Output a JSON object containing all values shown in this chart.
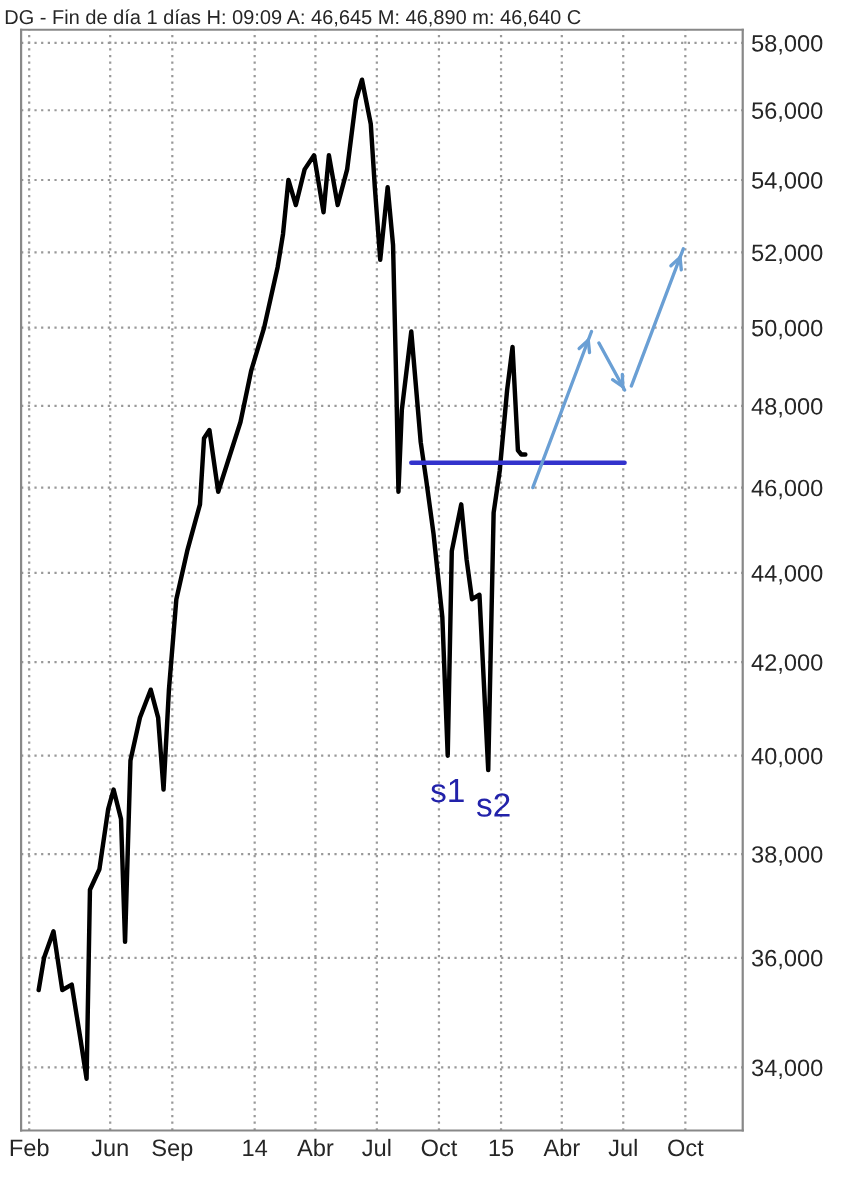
{
  "chart_data": {
    "type": "line",
    "title": "DG - Fin de día 1 días H: 09:09 A: 46,645 M: 46,890 m: 46,640 C",
    "log": "y",
    "grid": true,
    "legend": false,
    "xlim": [
      "2013-01-20",
      "2015-12-25"
    ],
    "xticks": [
      {
        "value": "2013-02-01",
        "label": "Feb"
      },
      {
        "value": "2013-06-01",
        "label": "Jun"
      },
      {
        "value": "2013-09-01",
        "label": "Sep"
      },
      {
        "value": "2014-01-01",
        "label": "14"
      },
      {
        "value": "2014-04-01",
        "label": "Abr"
      },
      {
        "value": "2014-07-01",
        "label": "Jul"
      },
      {
        "value": "2014-10-01",
        "label": "Oct"
      },
      {
        "value": "2015-01-01",
        "label": "15"
      },
      {
        "value": "2015-04-01",
        "label": "Abr"
      },
      {
        "value": "2015-07-01",
        "label": "Jul"
      },
      {
        "value": "2015-10-01",
        "label": "Oct"
      }
    ],
    "ylim": [
      32900,
      58400
    ],
    "yticks": [
      {
        "value": 34000,
        "label": "34,000"
      },
      {
        "value": 36000,
        "label": "36,000"
      },
      {
        "value": 38000,
        "label": "38,000"
      },
      {
        "value": 40000,
        "label": "40,000"
      },
      {
        "value": 42000,
        "label": "42,000"
      },
      {
        "value": 44000,
        "label": "44,000"
      },
      {
        "value": 46000,
        "label": "46,000"
      },
      {
        "value": 48000,
        "label": "48,000"
      },
      {
        "value": 50000,
        "label": "50,000"
      },
      {
        "value": 52000,
        "label": "52,000"
      },
      {
        "value": 54000,
        "label": "54,000"
      },
      {
        "value": 56000,
        "label": "56,000"
      },
      {
        "value": 58000,
        "label": "58,000"
      }
    ],
    "series": [
      {
        "color": "#000000",
        "x": [
          "2013-02-15",
          "2013-02-23",
          "2013-03-09",
          "2013-03-22",
          "2013-04-05",
          "2013-04-18",
          "2013-04-27",
          "2013-05-02",
          "2013-05-16",
          "2013-05-29",
          "2013-06-06",
          "2013-06-17",
          "2013-06-23",
          "2013-07-01",
          "2013-07-15",
          "2013-07-31",
          "2013-08-11",
          "2013-08-19",
          "2013-08-27",
          "2013-09-07",
          "2013-09-23",
          "2013-10-12",
          "2013-10-18",
          "2013-10-26",
          "2013-11-08",
          "2013-12-11",
          "2013-12-27",
          "2014-01-15",
          "2014-02-04",
          "2014-02-12",
          "2014-02-20",
          "2014-03-03",
          "2014-03-16",
          "2014-03-30",
          "2014-04-13",
          "2014-04-21",
          "2014-05-04",
          "2014-05-18",
          "2014-05-31",
          "2014-06-09",
          "2014-06-22",
          "2014-06-28",
          "2014-07-06",
          "2014-07-17",
          "2014-07-25",
          "2014-07-30",
          "2014-08-02",
          "2014-08-07",
          "2014-08-21",
          "2014-09-04",
          "2014-09-12",
          "2014-09-23",
          "2014-10-06",
          "2014-10-14",
          "2014-10-20",
          "2014-11-03",
          "2014-11-11",
          "2014-11-19",
          "2014-11-30",
          "2014-12-13",
          "2014-12-21",
          "2014-12-30",
          "2015-01-10",
          "2015-01-18",
          "2015-01-26",
          "2015-01-31",
          "2015-02-06"
        ],
        "values": [
          35400,
          36000,
          36500,
          35400,
          35500,
          34500,
          33800,
          37300,
          37700,
          38900,
          39300,
          38700,
          36300,
          39900,
          40800,
          41400,
          40800,
          39300,
          41400,
          43400,
          44500,
          45600,
          47200,
          47400,
          45900,
          47600,
          48900,
          50000,
          51600,
          52500,
          54000,
          53300,
          54300,
          54700,
          53100,
          54700,
          53300,
          54300,
          56300,
          56900,
          55600,
          53800,
          51800,
          53800,
          52200,
          48400,
          45900,
          47900,
          49900,
          47100,
          46200,
          44900,
          43000,
          40000,
          44500,
          45600,
          44300,
          43400,
          43500,
          39700,
          45400,
          46400,
          48400,
          49500,
          46900,
          46800,
          46800
        ]
      },
      {
        "color": "#3333cc",
        "x": [
          "2014-08-21",
          "2015-07-03"
        ],
        "values": [
          46600,
          46600
        ]
      },
      {
        "color": "#6a9fd4",
        "x": [
          "2015-02-17",
          "2015-05-15",
          "2015-05-16",
          "2015-05-26",
          "2015-07-03",
          "2015-07-04",
          "2015-07-13",
          "2015-09-28"
        ],
        "values": [
          46000,
          49900,
          null,
          49600,
          48400,
          null,
          48500,
          52100
        ]
      }
    ],
    "annotations": [
      {
        "text": "s1",
        "x": "2014-10-14",
        "y": 40000
      },
      {
        "text": "s2",
        "x": "2014-12-21",
        "y": 39700
      }
    ]
  }
}
